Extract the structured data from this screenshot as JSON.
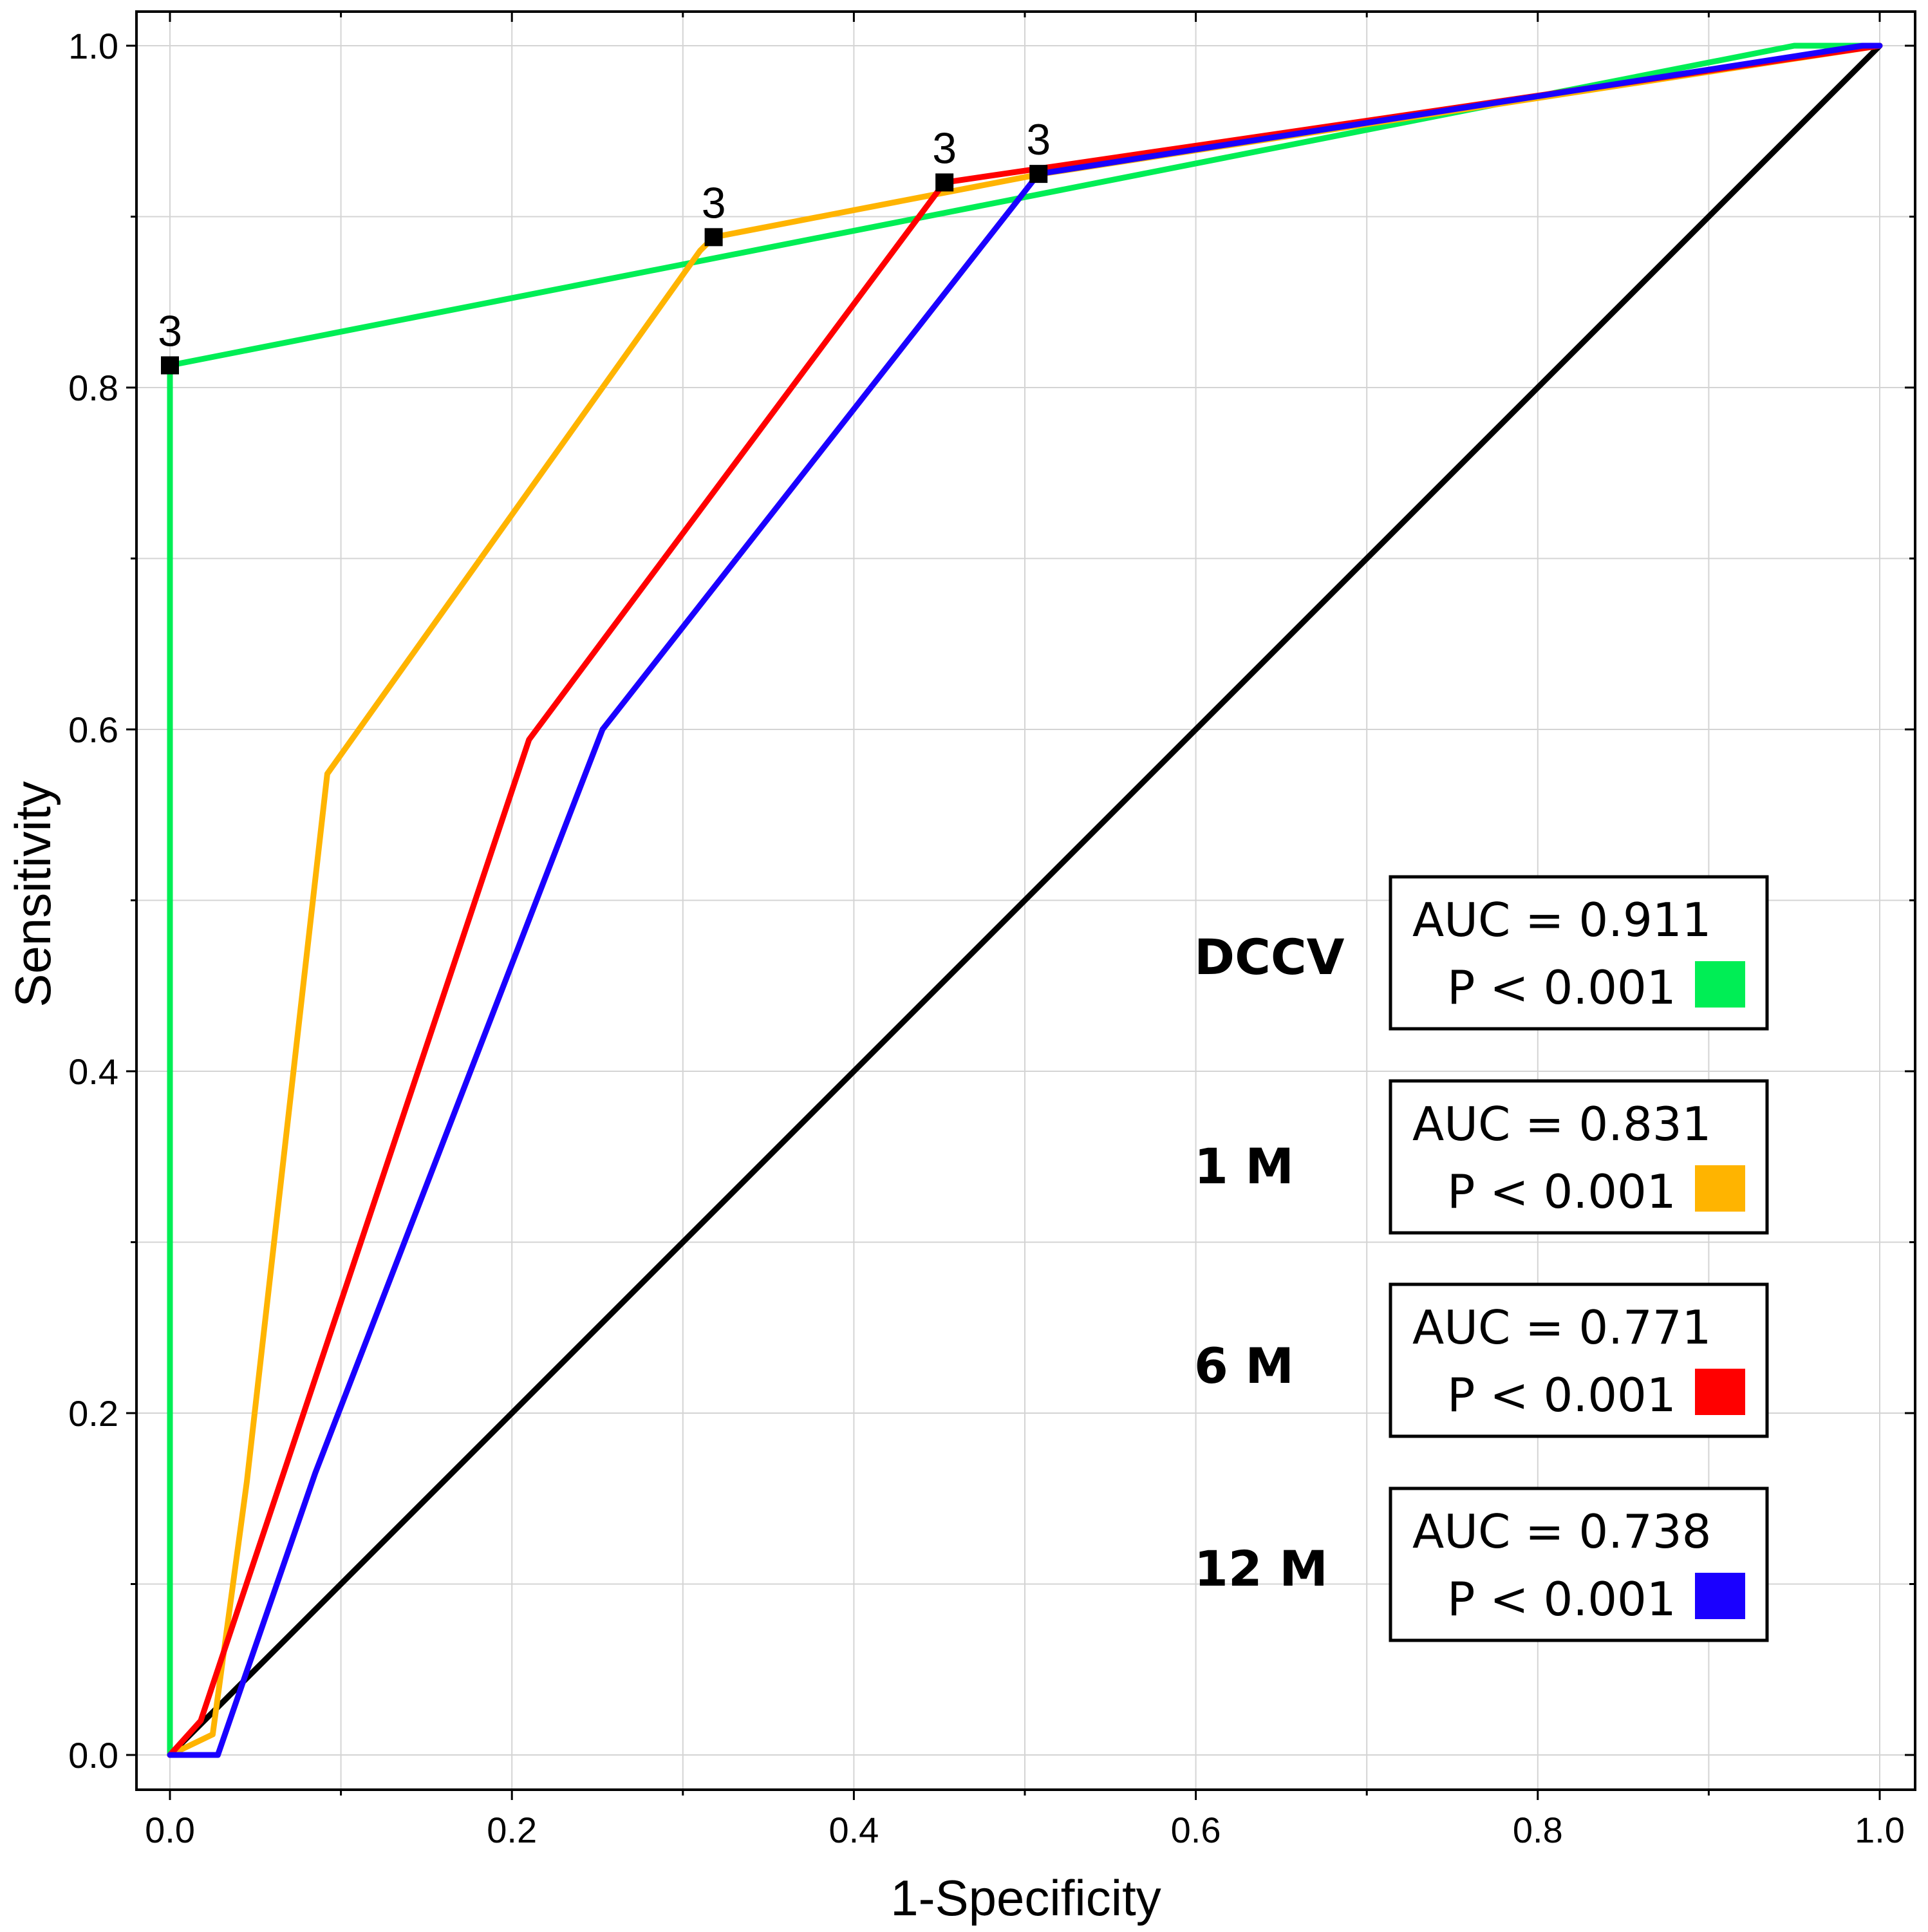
{
  "chart_data": {
    "type": "line",
    "title": "",
    "xlabel": "1-Specificity",
    "ylabel": "Sensitivity",
    "xlim": [
      0,
      1
    ],
    "ylim": [
      0,
      1
    ],
    "xticks": [
      "0.0",
      "0.2",
      "0.4",
      "0.6",
      "0.8",
      "1.0"
    ],
    "yticks": [
      "0.0",
      "0.2",
      "0.4",
      "0.6",
      "0.8",
      "1.0"
    ],
    "grid": true,
    "series": [
      {
        "name": "DCCV",
        "color": "#00ee55",
        "auc": "AUC = 0.911",
        "p": "P < 0.001",
        "points": [
          [
            0,
            0
          ],
          [
            0,
            0.813
          ],
          [
            0.95,
            1.0
          ],
          [
            1.0,
            1.0
          ]
        ],
        "cutoff": {
          "x": 0.0,
          "y": 0.813,
          "label": "3"
        }
      },
      {
        "name": "1 M",
        "color": "#ffb400",
        "auc": "AUC = 0.831",
        "p": "P < 0.001",
        "points": [
          [
            0,
            0
          ],
          [
            0.025,
            0.012
          ],
          [
            0.045,
            0.16
          ],
          [
            0.092,
            0.574
          ],
          [
            0.31,
            0.88
          ],
          [
            0.318,
            0.888
          ],
          [
            0.51,
            0.925
          ],
          [
            1.0,
            1.0
          ]
        ],
        "cutoff": {
          "x": 0.318,
          "y": 0.888,
          "label": "3"
        }
      },
      {
        "name": "6 M",
        "color": "#ff0000",
        "auc": "AUC = 0.771",
        "p": "P < 0.001",
        "points": [
          [
            0,
            0
          ],
          [
            0.018,
            0.02
          ],
          [
            0.21,
            0.594
          ],
          [
            0.453,
            0.92
          ],
          [
            1.0,
            1.0
          ]
        ],
        "cutoff": {
          "x": 0.453,
          "y": 0.92,
          "label": "3"
        }
      },
      {
        "name": "12 M",
        "color": "#1a00ff",
        "auc": "AUC = 0.738",
        "p": "P < 0.001",
        "points": [
          [
            0,
            0
          ],
          [
            0.028,
            0.0
          ],
          [
            0.085,
            0.165
          ],
          [
            0.253,
            0.6
          ],
          [
            0.508,
            0.925
          ],
          [
            0.99,
            1.0
          ],
          [
            1.0,
            1.0
          ]
        ],
        "cutoff": {
          "x": 0.508,
          "y": 0.925,
          "label": "3"
        }
      },
      {
        "name": "reference",
        "color": "#000000",
        "points": [
          [
            0,
            0
          ],
          [
            1,
            1
          ]
        ]
      }
    ]
  }
}
